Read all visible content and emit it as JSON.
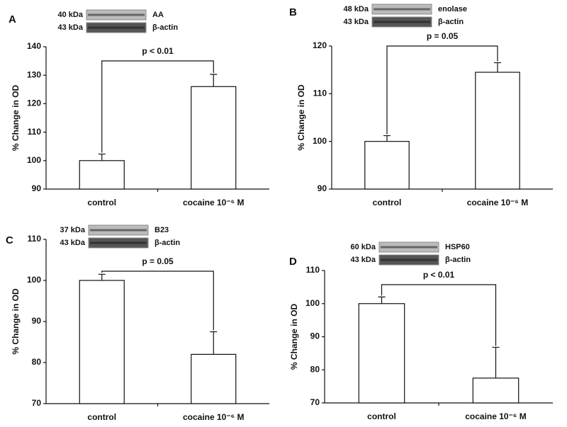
{
  "chart_data": [
    {
      "type": "bar",
      "panel": "A",
      "blots": [
        {
          "size": "40 kDa",
          "label": "AA"
        },
        {
          "size": "43 kDa",
          "label": "β-actin"
        }
      ],
      "annotation": "p < 0.01",
      "y_label": "% Change in OD",
      "categories": [
        "control",
        "cocaine 10⁻⁶ M"
      ],
      "values": [
        100,
        126
      ],
      "errors": [
        2.3,
        4.3
      ],
      "color": "#ffffff",
      "ylim": [
        90,
        140
      ],
      "yticks": [
        90,
        100,
        110,
        120,
        130,
        140
      ]
    },
    {
      "type": "bar",
      "panel": "B",
      "blots": [
        {
          "size": "48 kDa",
          "label": "enolase"
        },
        {
          "size": "43 kDa",
          "label": "β-actin"
        }
      ],
      "annotation": "p = 0.05",
      "y_label": "% Change in OD",
      "categories": [
        "control",
        "cocaine 10⁻⁶ M"
      ],
      "values": [
        100,
        114.5
      ],
      "errors": [
        1.2,
        2
      ],
      "color": "#ffffff",
      "ylim": [
        90,
        120
      ],
      "yticks": [
        90,
        100,
        110,
        120
      ]
    },
    {
      "type": "bar",
      "panel": "C",
      "blots": [
        {
          "size": "37 kDa",
          "label": "B23"
        },
        {
          "size": "43 kDa",
          "label": "β-actin"
        }
      ],
      "annotation": "p = 0.05",
      "y_label": "% Change in OD",
      "categories": [
        "control",
        "cocaine 10⁻⁶ M"
      ],
      "values": [
        100,
        82
      ],
      "errors": [
        1.5,
        5.5
      ],
      "color": "#ffffff",
      "ylim": [
        70,
        110
      ],
      "yticks": [
        70,
        80,
        90,
        100,
        110
      ]
    },
    {
      "type": "bar",
      "panel": "D",
      "blots": [
        {
          "size": "60 kDa",
          "label": "HSP60"
        },
        {
          "size": "43 kDa",
          "label": "β-actin"
        }
      ],
      "annotation": "p < 0.01",
      "y_label": "% Change in OD",
      "categories": [
        "control",
        "cocaine 10⁻⁶ M"
      ],
      "values": [
        100,
        77.5
      ],
      "errors": [
        2,
        9.3
      ],
      "color": "#ffffff",
      "ylim": [
        70,
        110
      ],
      "yticks": [
        70,
        80,
        90,
        100,
        110
      ]
    }
  ]
}
